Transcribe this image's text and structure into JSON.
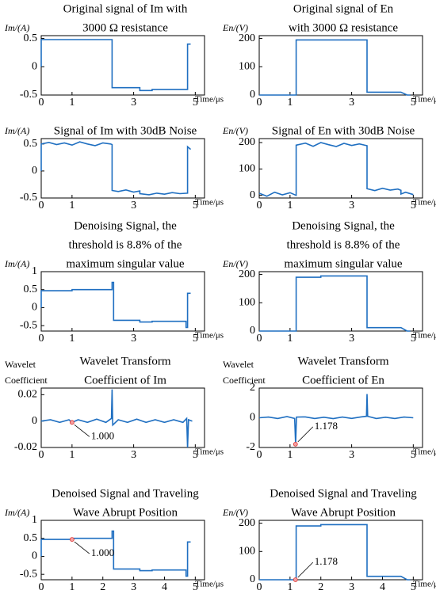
{
  "chart_data": [
    {
      "type": "line",
      "title": [
        "Original signal of Im with",
        "3000 Ω resistance"
      ],
      "ylabel": [
        "Im/(A)"
      ],
      "xlabel": "Time/μs",
      "color": "#1f6fc1",
      "xlim": [
        0,
        5.3
      ],
      "xticks": [
        0,
        1,
        3,
        5
      ],
      "ylim": [
        -0.5,
        0.55
      ],
      "yticks": [
        -0.5,
        0,
        0.5
      ],
      "x": [
        0,
        0,
        2.3,
        2.3,
        3.2,
        3.2,
        3.6,
        3.6,
        4.75,
        4.75,
        4.85
      ],
      "values": [
        0,
        0.48,
        0.48,
        -0.37,
        -0.37,
        -0.42,
        -0.42,
        -0.4,
        -0.4,
        0.4,
        0.4
      ]
    },
    {
      "type": "line",
      "title": [
        "Original signal of En",
        "with 3000 Ω resistance"
      ],
      "ylabel": [
        "En/(V)"
      ],
      "xlabel": "Time/μs",
      "color": "#1f6fc1",
      "xlim": [
        0,
        5.3
      ],
      "xticks": [
        0,
        1,
        3,
        5
      ],
      "ylim": [
        0,
        210
      ],
      "yticks": [
        0,
        100,
        200
      ],
      "x": [
        0,
        1.2,
        1.2,
        3.5,
        3.5,
        4.6,
        4.8,
        4.9
      ],
      "values": [
        0,
        0,
        195,
        195,
        10,
        10,
        0,
        0
      ]
    },
    {
      "type": "line",
      "title": [
        "Signal of Im with 30dB Noise"
      ],
      "ylabel": [
        "Im/(A)"
      ],
      "xlabel": "Time/μs",
      "color": "#1f6fc1",
      "xlim": [
        0,
        5.3
      ],
      "xticks": [
        0,
        1,
        3,
        5
      ],
      "ylim": [
        -0.5,
        0.6
      ],
      "yticks": [
        -0.5,
        0,
        0.5
      ],
      "x": [
        0,
        0,
        0.25,
        0.5,
        0.75,
        1,
        1.25,
        1.5,
        1.75,
        2,
        2.25,
        2.3,
        2.3,
        2.5,
        2.75,
        3,
        3.2,
        3.2,
        3.5,
        3.75,
        4,
        4.25,
        4.5,
        4.75,
        4.75,
        4.85
      ],
      "values": [
        0,
        0.5,
        0.53,
        0.49,
        0.52,
        0.48,
        0.54,
        0.5,
        0.47,
        0.52,
        0.5,
        0.49,
        -0.36,
        -0.38,
        -0.35,
        -0.39,
        -0.37,
        -0.42,
        -0.44,
        -0.41,
        -0.43,
        -0.4,
        -0.42,
        -0.41,
        0.45,
        0.4
      ]
    },
    {
      "type": "line",
      "title": [
        "Signal of En with 30dB Noise"
      ],
      "ylabel": [
        "En/(V)"
      ],
      "xlabel": "Time/μs",
      "color": "#1f6fc1",
      "xlim": [
        0,
        5.3
      ],
      "xticks": [
        0,
        1,
        3,
        5
      ],
      "ylim": [
        -10,
        215
      ],
      "yticks": [
        0,
        100,
        200
      ],
      "x": [
        0,
        0.25,
        0.5,
        0.75,
        1,
        1.2,
        1.2,
        1.5,
        1.75,
        2,
        2.25,
        2.5,
        2.75,
        3,
        3.25,
        3.5,
        3.5,
        3.75,
        4,
        4.25,
        4.5,
        4.6,
        4.6,
        4.75,
        5
      ],
      "values": [
        8,
        -3,
        12,
        2,
        10,
        0,
        190,
        198,
        186,
        200,
        192,
        185,
        197,
        189,
        195,
        188,
        25,
        18,
        27,
        20,
        24,
        19,
        5,
        12,
        3
      ]
    },
    {
      "type": "line",
      "title": [
        "Denoising Signal, the",
        "threshold is 8.8% of the",
        "maximum singular value"
      ],
      "ylabel": [
        "Im/(A)"
      ],
      "xlabel": "Time/μs",
      "color": "#1f6fc1",
      "xlim": [
        0,
        5.3
      ],
      "xticks": [
        0,
        1,
        3,
        5
      ],
      "ylim": [
        -0.65,
        1
      ],
      "yticks": [
        -0.5,
        0,
        0.5,
        1
      ],
      "x": [
        0,
        0,
        1,
        1,
        2.3,
        2.3,
        2.35,
        2.35,
        3.2,
        3.2,
        3.6,
        3.6,
        4.7,
        4.7,
        4.75,
        4.75,
        4.85
      ],
      "values": [
        0,
        0.47,
        0.47,
        0.5,
        0.5,
        0.7,
        0.7,
        -0.35,
        -0.35,
        -0.4,
        -0.4,
        -0.38,
        -0.38,
        -0.55,
        -0.55,
        0.4,
        0.4
      ]
    },
    {
      "type": "line",
      "title": [
        "Denoising Signal, the",
        "threshold is 8.8% of the",
        "maximum singular value"
      ],
      "ylabel": [
        "En/(V)"
      ],
      "xlabel": "Time/μs",
      "color": "#1f6fc1",
      "xlim": [
        0,
        5.3
      ],
      "xticks": [
        0,
        1,
        3,
        5
      ],
      "ylim": [
        0,
        210
      ],
      "yticks": [
        0,
        100,
        200
      ],
      "x": [
        0,
        1.2,
        1.2,
        2,
        2,
        3.5,
        3.5,
        4.6,
        4.8,
        4.9
      ],
      "values": [
        0,
        0,
        190,
        190,
        195,
        195,
        12,
        12,
        0,
        0
      ]
    },
    {
      "type": "line",
      "title": [
        "Wavelet Transform",
        "Coefficient of Im"
      ],
      "ylabel": [
        "Wavelet",
        "Coefficient"
      ],
      "xlabel": "Time/μs",
      "color": "#1f6fc1",
      "xlim": [
        0,
        5.3
      ],
      "xticks": [
        0,
        1,
        3,
        5
      ],
      "ylim": [
        -0.02,
        0.025
      ],
      "yticks": [
        -0.02,
        0,
        0.02
      ],
      "x": [
        0,
        0.3,
        0.6,
        0.9,
        1,
        1.2,
        1.5,
        1.8,
        2.1,
        2.28,
        2.3,
        2.32,
        2.5,
        2.8,
        3.1,
        3.4,
        3.7,
        4,
        4.3,
        4.6,
        4.72,
        4.75,
        4.78,
        4.9
      ],
      "values": [
        0,
        0.001,
        -0.001,
        0.001,
        -0.001,
        0.001,
        -0.001,
        0.0015,
        -0.001,
        0.002,
        0.024,
        -0.003,
        0.001,
        -0.001,
        0.0015,
        -0.001,
        0.001,
        -0.001,
        0.001,
        -0.001,
        0.002,
        -0.02,
        0.001,
        0
      ],
      "marker": {
        "x": 1,
        "y": -0.001
      },
      "annotation": "1.000"
    },
    {
      "type": "line",
      "title": [
        "Wavelet Transform",
        "Coefficient of En"
      ],
      "ylabel": [
        "Wavelet",
        "Coefficient"
      ],
      "xlabel": "Time/μs",
      "color": "#1f6fc1",
      "xlim": [
        0,
        5.3
      ],
      "xticks": [
        0,
        1,
        3,
        5
      ],
      "ylim": [
        -2,
        2
      ],
      "yticks": [
        -2,
        0,
        2
      ],
      "x": [
        0,
        0.3,
        0.6,
        0.9,
        1.15,
        1.18,
        1.21,
        1.5,
        1.8,
        2.1,
        2.4,
        2.7,
        3,
        3.3,
        3.48,
        3.5,
        3.52,
        3.8,
        4.1,
        4.4,
        4.7,
        5
      ],
      "values": [
        0,
        0.05,
        -0.05,
        0.08,
        -0.05,
        -1.78,
        0.05,
        0.06,
        -0.05,
        0.04,
        -0.06,
        0.05,
        -0.04,
        0.06,
        0.1,
        1.6,
        0.1,
        -0.05,
        0.04,
        -0.05,
        0.05,
        0
      ],
      "marker": {
        "x": 1.178,
        "y": -1.78
      },
      "annotation": "1.178"
    },
    {
      "type": "line",
      "title": [
        "Denoised Signal and Traveling",
        "Wave Abrupt Position"
      ],
      "ylabel": [
        "Im/(A)"
      ],
      "xlabel": "Time/μs",
      "color": "#1f6fc1",
      "xlim": [
        0,
        5.3
      ],
      "xticks": [
        0,
        1,
        2,
        3,
        4,
        5
      ],
      "ylim": [
        -0.65,
        1
      ],
      "yticks": [
        -0.5,
        0,
        0.5,
        1
      ],
      "x": [
        0,
        0,
        1,
        1,
        2.3,
        2.3,
        2.35,
        2.35,
        3.2,
        3.2,
        3.6,
        3.6,
        4.7,
        4.7,
        4.75,
        4.75,
        4.85
      ],
      "values": [
        0,
        0.47,
        0.47,
        0.5,
        0.5,
        0.7,
        0.7,
        -0.35,
        -0.35,
        -0.4,
        -0.4,
        -0.38,
        -0.38,
        -0.55,
        -0.55,
        0.4,
        0.4
      ],
      "marker": {
        "x": 1,
        "y": 0.47
      },
      "annotation": "1.000"
    },
    {
      "type": "line",
      "title": [
        "Denoised Signal and Traveling",
        "Wave Abrupt Position"
      ],
      "ylabel": [
        "En/(V)"
      ],
      "xlabel": "Time/μs",
      "color": "#1f6fc1",
      "xlim": [
        0,
        5.3
      ],
      "xticks": [
        0,
        1,
        2,
        3,
        4,
        5
      ],
      "ylim": [
        0,
        210
      ],
      "yticks": [
        0,
        100,
        200
      ],
      "x": [
        0,
        1.2,
        1.2,
        2,
        2,
        3.5,
        3.5,
        4.6,
        4.8,
        4.9
      ],
      "values": [
        0,
        0,
        190,
        190,
        195,
        195,
        12,
        12,
        0,
        0
      ],
      "marker": {
        "x": 1.178,
        "y": 0
      },
      "annotation": "1.178"
    }
  ]
}
